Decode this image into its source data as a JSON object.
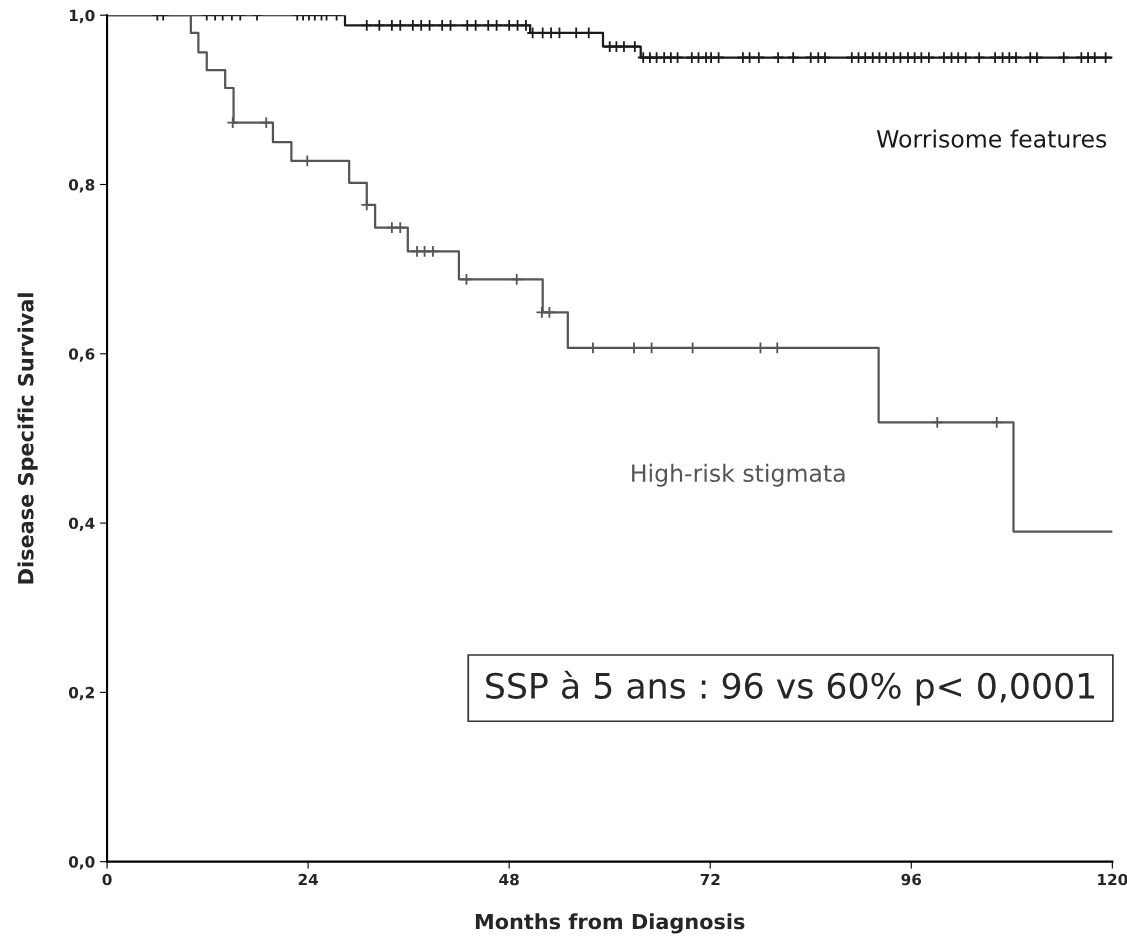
{
  "chart_data": {
    "type": "step",
    "xlabel": "Months from Diagnosis",
    "ylabel": "Disease Specific Survival",
    "xlim": [
      0,
      120
    ],
    "xticks": [
      0,
      24,
      48,
      72,
      96,
      120
    ],
    "ylim": [
      0,
      1
    ],
    "yticks": [
      {
        "value": 0,
        "label": "0,0"
      },
      {
        "value": 0.2,
        "label": "0,2"
      },
      {
        "value": 0.4,
        "label": "0,4"
      },
      {
        "value": 0.6,
        "label": "0,6"
      },
      {
        "value": 0.8,
        "label": "0,8"
      },
      {
        "value": 1,
        "label": "1,0"
      }
    ],
    "grid": false,
    "legend": false,
    "line_style": "solid",
    "series": [
      {
        "name": "Worrisome features",
        "color": "#1a1a1a",
        "x": [
          0,
          28.4,
          50.5,
          59.2,
          63.7,
          120
        ],
        "values": [
          1.0,
          0.988,
          0.979,
          0.963,
          0.95,
          0.95
        ]
      },
      {
        "name": "High-risk stigmata",
        "color": "#555555",
        "x": [
          0,
          10,
          10.9,
          11.9,
          14.1,
          15.1,
          19.8,
          22,
          28.9,
          31,
          32,
          35.9,
          42,
          52,
          55,
          92.1,
          108.2,
          120
        ],
        "values": [
          1.0,
          0.979,
          0.956,
          0.935,
          0.914,
          0.873,
          0.85,
          0.828,
          0.802,
          0.776,
          0.749,
          0.721,
          0.688,
          0.649,
          0.607,
          0.519,
          0.39,
          0.39
        ]
      },
      {
        "type": "scatter",
        "marker": "cross",
        "color": "#1a1a1a",
        "x": [
          6,
          6.7,
          11.9,
          12.9,
          13.8,
          14.9,
          15.9,
          17.9,
          22.7,
          23.4,
          24.1,
          24.8,
          25.6,
          26.2,
          27.4,
          31,
          32.5,
          34,
          35,
          36.5,
          37.5,
          38.5,
          40,
          41,
          43,
          44,
          45.5,
          46.5,
          48,
          49,
          50,
          50.8,
          52,
          53,
          54,
          56,
          57.5,
          60,
          60.8,
          61.7,
          63,
          64.0,
          64.8,
          65.6,
          66.5,
          67.3,
          68.1,
          69.8,
          70.6,
          71.5,
          72.1,
          73.0,
          75.9,
          76.7,
          77.8,
          80.1,
          81.9,
          84.0,
          84.9,
          85.7,
          88.9,
          89.7,
          90.5,
          91.4,
          92.2,
          93.0,
          93.9,
          94.7,
          95.6,
          96.4,
          97.2,
          98.1,
          99.9,
          100.8,
          101.6,
          102.5,
          104.1,
          106.0,
          106.9,
          107.7,
          108.5,
          110.2,
          111.0,
          114.2,
          116.3,
          117.1,
          117.9,
          119.2
        ],
        "values": [
          1,
          1,
          1,
          1,
          1,
          1,
          1,
          1,
          1,
          1,
          1,
          1,
          1,
          1,
          1,
          0.988,
          0.988,
          0.988,
          0.988,
          0.988,
          0.988,
          0.988,
          0.988,
          0.988,
          0.988,
          0.988,
          0.988,
          0.988,
          0.988,
          0.988,
          0.988,
          0.979,
          0.979,
          0.979,
          0.979,
          0.979,
          0.979,
          0.963,
          0.963,
          0.963,
          0.963,
          0.95,
          0.95,
          0.95,
          0.95,
          0.95,
          0.95,
          0.95,
          0.95,
          0.95,
          0.95,
          0.95,
          0.95,
          0.95,
          0.95,
          0.95,
          0.95,
          0.95,
          0.95,
          0.95,
          0.95,
          0.95,
          0.95,
          0.95,
          0.95,
          0.95,
          0.95,
          0.95,
          0.95,
          0.95,
          0.95,
          0.95,
          0.95,
          0.95,
          0.95,
          0.95,
          0.95,
          0.95,
          0.95,
          0.95,
          0.95,
          0.95,
          0.95,
          0.95,
          0.95,
          0.95,
          0.95,
          0.95
        ]
      },
      {
        "type": "scatter",
        "marker": "cross",
        "color": "#555555",
        "x": [
          15,
          19,
          23.9,
          31,
          34,
          35,
          37,
          37.9,
          38.9,
          42.9,
          48.9,
          51.9,
          52.8,
          58,
          62.9,
          65,
          69.9,
          78,
          80,
          99.1,
          106.2
        ],
        "values": [
          0.873,
          0.873,
          0.828,
          0.776,
          0.749,
          0.749,
          0.721,
          0.721,
          0.721,
          0.688,
          0.688,
          0.649,
          0.649,
          0.607,
          0.607,
          0.607,
          0.607,
          0.607,
          0.607,
          0.519,
          0.519
        ]
      }
    ],
    "annotations": [
      "SSP à 5 ans : 96 vs 60% p< 0,0001"
    ]
  }
}
